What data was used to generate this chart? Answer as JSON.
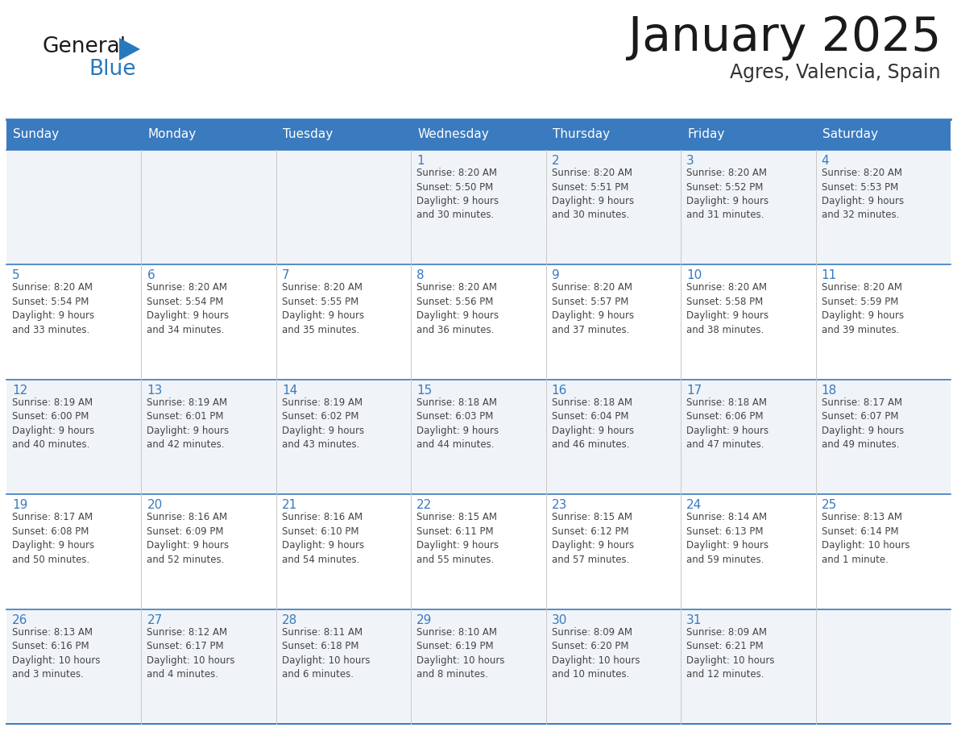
{
  "title": "January 2025",
  "subtitle": "Agres, Valencia, Spain",
  "header_bg": "#3a7abf",
  "header_text_color": "#ffffff",
  "cell_bg_light": "#f0f4f8",
  "cell_bg_white": "#ffffff",
  "cell_border_color": "#3a7abf",
  "cell_col_border": "#c8c8c8",
  "day_headers": [
    "Sunday",
    "Monday",
    "Tuesday",
    "Wednesday",
    "Thursday",
    "Friday",
    "Saturday"
  ],
  "title_color": "#1a1a1a",
  "subtitle_color": "#333333",
  "day_number_color": "#3a7abf",
  "cell_text_color": "#444444",
  "logo_general_color": "#1a1a1a",
  "logo_blue_color": "#2878be",
  "weeks": [
    [
      {
        "day": "",
        "info": ""
      },
      {
        "day": "",
        "info": ""
      },
      {
        "day": "",
        "info": ""
      },
      {
        "day": "1",
        "info": "Sunrise: 8:20 AM\nSunset: 5:50 PM\nDaylight: 9 hours\nand 30 minutes."
      },
      {
        "day": "2",
        "info": "Sunrise: 8:20 AM\nSunset: 5:51 PM\nDaylight: 9 hours\nand 30 minutes."
      },
      {
        "day": "3",
        "info": "Sunrise: 8:20 AM\nSunset: 5:52 PM\nDaylight: 9 hours\nand 31 minutes."
      },
      {
        "day": "4",
        "info": "Sunrise: 8:20 AM\nSunset: 5:53 PM\nDaylight: 9 hours\nand 32 minutes."
      }
    ],
    [
      {
        "day": "5",
        "info": "Sunrise: 8:20 AM\nSunset: 5:54 PM\nDaylight: 9 hours\nand 33 minutes."
      },
      {
        "day": "6",
        "info": "Sunrise: 8:20 AM\nSunset: 5:54 PM\nDaylight: 9 hours\nand 34 minutes."
      },
      {
        "day": "7",
        "info": "Sunrise: 8:20 AM\nSunset: 5:55 PM\nDaylight: 9 hours\nand 35 minutes."
      },
      {
        "day": "8",
        "info": "Sunrise: 8:20 AM\nSunset: 5:56 PM\nDaylight: 9 hours\nand 36 minutes."
      },
      {
        "day": "9",
        "info": "Sunrise: 8:20 AM\nSunset: 5:57 PM\nDaylight: 9 hours\nand 37 minutes."
      },
      {
        "day": "10",
        "info": "Sunrise: 8:20 AM\nSunset: 5:58 PM\nDaylight: 9 hours\nand 38 minutes."
      },
      {
        "day": "11",
        "info": "Sunrise: 8:20 AM\nSunset: 5:59 PM\nDaylight: 9 hours\nand 39 minutes."
      }
    ],
    [
      {
        "day": "12",
        "info": "Sunrise: 8:19 AM\nSunset: 6:00 PM\nDaylight: 9 hours\nand 40 minutes."
      },
      {
        "day": "13",
        "info": "Sunrise: 8:19 AM\nSunset: 6:01 PM\nDaylight: 9 hours\nand 42 minutes."
      },
      {
        "day": "14",
        "info": "Sunrise: 8:19 AM\nSunset: 6:02 PM\nDaylight: 9 hours\nand 43 minutes."
      },
      {
        "day": "15",
        "info": "Sunrise: 8:18 AM\nSunset: 6:03 PM\nDaylight: 9 hours\nand 44 minutes."
      },
      {
        "day": "16",
        "info": "Sunrise: 8:18 AM\nSunset: 6:04 PM\nDaylight: 9 hours\nand 46 minutes."
      },
      {
        "day": "17",
        "info": "Sunrise: 8:18 AM\nSunset: 6:06 PM\nDaylight: 9 hours\nand 47 minutes."
      },
      {
        "day": "18",
        "info": "Sunrise: 8:17 AM\nSunset: 6:07 PM\nDaylight: 9 hours\nand 49 minutes."
      }
    ],
    [
      {
        "day": "19",
        "info": "Sunrise: 8:17 AM\nSunset: 6:08 PM\nDaylight: 9 hours\nand 50 minutes."
      },
      {
        "day": "20",
        "info": "Sunrise: 8:16 AM\nSunset: 6:09 PM\nDaylight: 9 hours\nand 52 minutes."
      },
      {
        "day": "21",
        "info": "Sunrise: 8:16 AM\nSunset: 6:10 PM\nDaylight: 9 hours\nand 54 minutes."
      },
      {
        "day": "22",
        "info": "Sunrise: 8:15 AM\nSunset: 6:11 PM\nDaylight: 9 hours\nand 55 minutes."
      },
      {
        "day": "23",
        "info": "Sunrise: 8:15 AM\nSunset: 6:12 PM\nDaylight: 9 hours\nand 57 minutes."
      },
      {
        "day": "24",
        "info": "Sunrise: 8:14 AM\nSunset: 6:13 PM\nDaylight: 9 hours\nand 59 minutes."
      },
      {
        "day": "25",
        "info": "Sunrise: 8:13 AM\nSunset: 6:14 PM\nDaylight: 10 hours\nand 1 minute."
      }
    ],
    [
      {
        "day": "26",
        "info": "Sunrise: 8:13 AM\nSunset: 6:16 PM\nDaylight: 10 hours\nand 3 minutes."
      },
      {
        "day": "27",
        "info": "Sunrise: 8:12 AM\nSunset: 6:17 PM\nDaylight: 10 hours\nand 4 minutes."
      },
      {
        "day": "28",
        "info": "Sunrise: 8:11 AM\nSunset: 6:18 PM\nDaylight: 10 hours\nand 6 minutes."
      },
      {
        "day": "29",
        "info": "Sunrise: 8:10 AM\nSunset: 6:19 PM\nDaylight: 10 hours\nand 8 minutes."
      },
      {
        "day": "30",
        "info": "Sunrise: 8:09 AM\nSunset: 6:20 PM\nDaylight: 10 hours\nand 10 minutes."
      },
      {
        "day": "31",
        "info": "Sunrise: 8:09 AM\nSunset: 6:21 PM\nDaylight: 10 hours\nand 12 minutes."
      },
      {
        "day": "",
        "info": ""
      }
    ]
  ]
}
